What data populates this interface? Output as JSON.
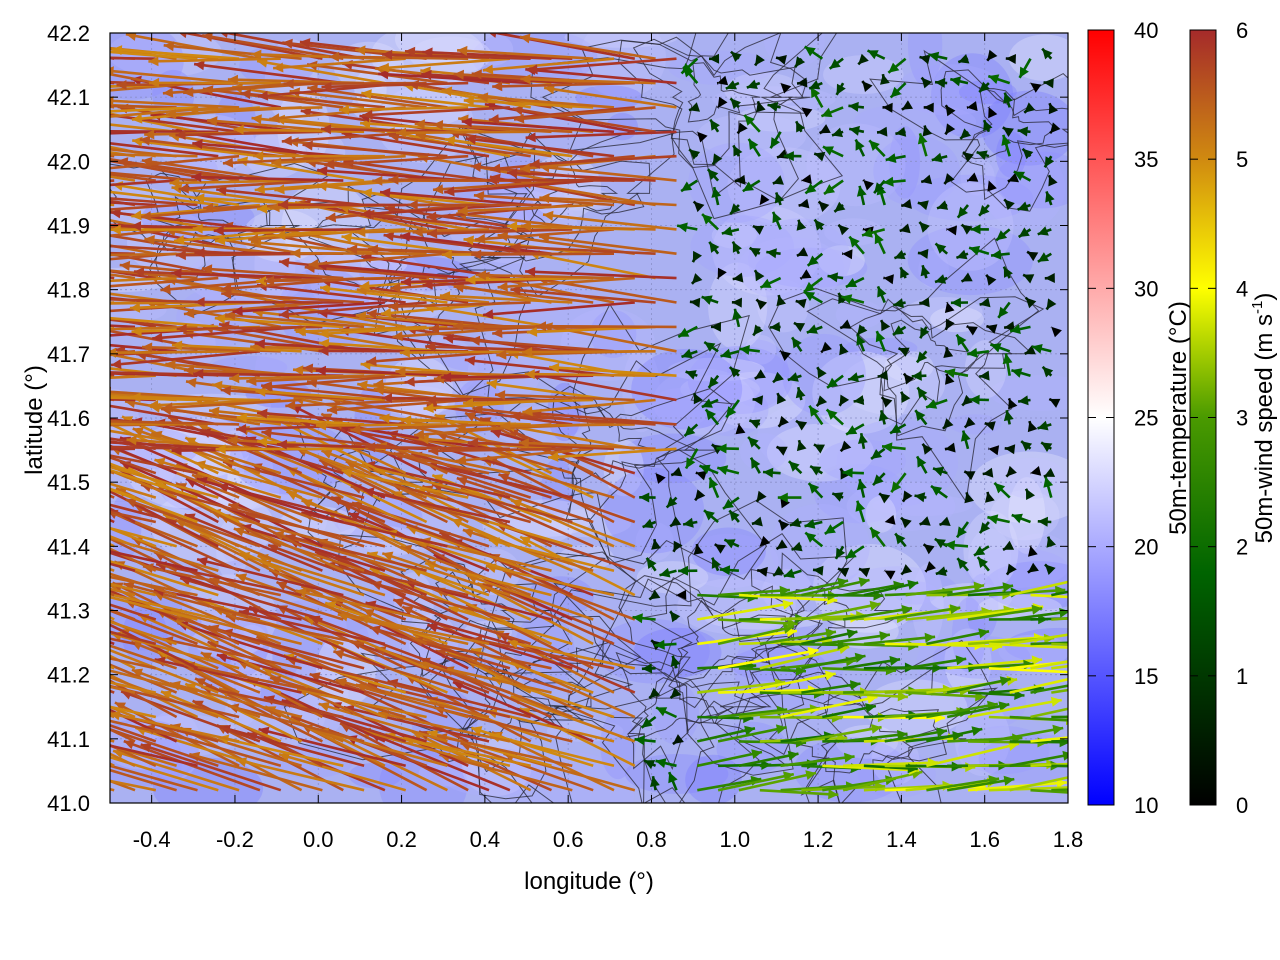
{
  "chart_data": {
    "type": "vector-field",
    "xlabel": "longitude (°)",
    "ylabel": "latitude (°)",
    "xlim": [
      -0.5,
      1.8
    ],
    "ylim": [
      41.0,
      42.2
    ],
    "x_ticks": [
      "-0.4",
      "-0.2",
      "0.0",
      "0.2",
      "0.4",
      "0.6",
      "0.8",
      "1.0",
      "1.2",
      "1.4",
      "1.6",
      "1.8"
    ],
    "x_tick_values": [
      -0.4,
      -0.2,
      0.0,
      0.2,
      0.4,
      0.6,
      0.8,
      1.0,
      1.2,
      1.4,
      1.6,
      1.8
    ],
    "y_ticks": [
      "41.0",
      "41.1",
      "41.2",
      "41.3",
      "41.4",
      "41.5",
      "41.6",
      "41.7",
      "41.8",
      "41.9",
      "42.0",
      "42.1",
      "42.2"
    ],
    "y_tick_values": [
      41.0,
      41.1,
      41.2,
      41.3,
      41.4,
      41.5,
      41.6,
      41.7,
      41.8,
      41.9,
      42.0,
      42.1,
      42.2
    ],
    "grid": true,
    "background_field": {
      "name": "50m-temperature",
      "unit": "°C",
      "typical_range": [
        17,
        24
      ]
    },
    "colorbars": [
      {
        "label": "50m-temperature (°C)",
        "min": 10,
        "max": 40,
        "ticks": [
          "10",
          "15",
          "20",
          "25",
          "30",
          "35",
          "40"
        ],
        "tick_values": [
          10,
          15,
          20,
          25,
          30,
          35,
          40
        ],
        "colors": [
          "#0000ff",
          "#ffffff",
          "#ff0000"
        ]
      },
      {
        "label_main": "50m-wind speed (m s",
        "label_sup": "-1",
        "label_end": ")",
        "min": 0,
        "max": 6,
        "ticks": [
          "0",
          "1",
          "2",
          "3",
          "4",
          "5",
          "6"
        ],
        "tick_values": [
          0,
          1,
          2,
          3,
          4,
          5,
          6
        ],
        "colors": [
          "#000000",
          "#006400",
          "#4a9a00",
          "#ffff00",
          "#d08a10",
          "#a52a2a"
        ]
      }
    ],
    "wind_regions": [
      {
        "name": "strong easterly band, western part",
        "lon": [
          -0.5,
          0.9
        ],
        "lat": [
          41.55,
          42.2
        ],
        "u_ms": -5.5,
        "v_ms": 0.3,
        "speed_ms": [
          5,
          6
        ]
      },
      {
        "name": "south-easterly outflow, southwest",
        "lon": [
          -0.5,
          0.8
        ],
        "lat": [
          41.0,
          41.55
        ],
        "u_ms": -5.5,
        "v_ms": 2.0,
        "speed_ms": [
          5,
          6
        ]
      },
      {
        "name": "weak variable flow, northeast",
        "lon": [
          1.0,
          1.8
        ],
        "lat": [
          41.4,
          42.2
        ],
        "u_ms": -0.6,
        "v_ms": 0.1,
        "speed_ms": [
          0,
          2
        ]
      },
      {
        "name": "westerly flow, southeast",
        "lon": [
          0.9,
          1.8
        ],
        "lat": [
          41.0,
          41.35
        ],
        "u_ms": 3.5,
        "v_ms": 0.3,
        "speed_ms": [
          2,
          4
        ]
      }
    ],
    "overlays": [
      "terrain contour lines (black)"
    ]
  }
}
